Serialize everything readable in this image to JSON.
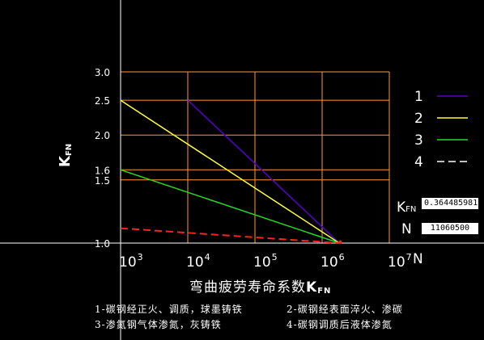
{
  "chart_data": {
    "type": "line",
    "title": "弯曲疲劳寿命系数",
    "title_symbol": "K",
    "title_symbol_sub": "FN",
    "ylabel": "K",
    "ylabel_sub": "FN",
    "xlabel": "N",
    "x_scale": "log",
    "y_scale": "log",
    "xlim": [
      1000,
      10000000
    ],
    "ylim": [
      1.0,
      3.0
    ],
    "x_ticks": [
      {
        "base": "10",
        "exp": "3"
      },
      {
        "base": "10",
        "exp": "4"
      },
      {
        "base": "10",
        "exp": "5"
      },
      {
        "base": "10",
        "exp": "6"
      },
      {
        "base": "10",
        "exp": "7"
      }
    ],
    "y_ticks": [
      "3.0",
      "2.5",
      "2.0",
      "1.6",
      "1.5",
      "1.0"
    ],
    "grid": true,
    "grid_color": "#ff9933",
    "series": [
      {
        "name": "1",
        "color": "#5500cc",
        "dash": false,
        "points": [
          [
            10000,
            2.5
          ],
          [
            1800000,
            1.0
          ]
        ]
      },
      {
        "name": "2",
        "color": "#ffff33",
        "dash": false,
        "points": [
          [
            1000,
            2.5
          ],
          [
            1800000,
            1.0
          ]
        ]
      },
      {
        "name": "3",
        "color": "#22dd22",
        "dash": false,
        "points": [
          [
            1000,
            1.6
          ],
          [
            1800000,
            1.0
          ]
        ]
      },
      {
        "name": "4",
        "color": "#ff2222",
        "dash": true,
        "points": [
          [
            1000,
            1.1
          ],
          [
            1800000,
            1.0
          ]
        ]
      }
    ],
    "endpoint_marker_color": "#ff2222"
  },
  "readout": {
    "kfn_label": "K",
    "kfn_label_sub": "FN",
    "kfn_value": "0.364485981",
    "n_label": "N",
    "n_value": "11060500"
  },
  "legend_notes": [
    "1-碳钢经正火、调质，球墨铸铁",
    "2-碳钢经表面淬火、渗碳",
    "3-渗氮钢气体渗氮，灰铸铁",
    "4-碳钢调质后液体渗氮"
  ],
  "colors": {
    "background": "#000000",
    "axis": "#ffffff"
  }
}
